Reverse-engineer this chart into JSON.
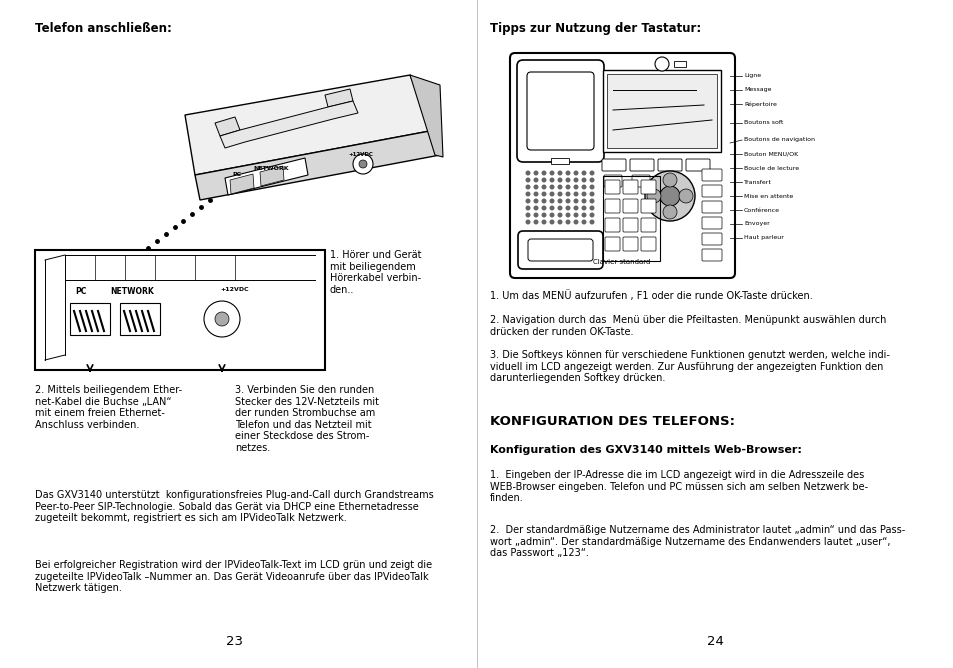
{
  "bg_color": "#ffffff",
  "text_color": "#000000",
  "left_page": {
    "title": "Telefon anschließen:",
    "caption1": "1. Hörer und Gerät\nmit beiliegendem\nHörerkabel verbin-\nden..",
    "caption2": "2. Mittels beiliegendem Ether-\nnet-Kabel die Buchse „LAN“\nmit einem freien Ethernet-\nAnschluss verbinden.",
    "caption3": "3. Verbinden Sie den runden\nStecker des 12V-Netzteils mit\nder runden Strombuchse am\nTelefon und das Netzteil mit\neiner Steckdose des Strom-\nnetzes.",
    "para1": "Das GXV3140 unterstützt  konfigurationsfreies Plug-and-Call durch Grandstreams\nPeer-to-Peer SIP-Technologie. Sobald das Gerät via DHCP eine Ethernetadresse\nzugeteilt bekommt, registriert es sich am IPVideoTalk Netzwerk.",
    "para2": "Bei erfolgreicher Registration wird der IPVideoTalk-Text im LCD grün und zeigt die\nzugeteilte IPVideoTalk –Nummer an. Das Gerät Videoanrufe über das IPVideoTalk\nNetzwerk tätigen.",
    "page_num": "23"
  },
  "right_page": {
    "title": "Tipps zur Nutzung der Tastatur:",
    "tip1": "1. Um das MENÜ aufzurufen , F1 oder die runde OK-Taste drücken.",
    "tip2": "2. Navigation durch das  Menü über die Pfeiltasten. Menüpunkt auswählen durch\ndrücken der runden OK-Taste.",
    "tip3": "3. Die Softkeys können für verschiedene Funktionen genutzt werden, welche indi-\nviduell im LCD angezeigt werden. Zur Ausführung der angezeigten Funktion den\ndarunterliegenden Softkey drücken.",
    "section_title": "KONFIGURATION DES TELEFONS:",
    "sub_title": "Konfiguration des GXV3140 mittels Web-Browser:",
    "config1": "1.  Eingeben der IP-Adresse die im LCD angezeigt wird in die Adresszeile des\nWEB-Browser eingeben. Telefon und PC müssen sich am selben Netzwerk be-\nfinden.",
    "config2": "2.  Der standardmäßige Nutzername des Administrator lautet „admin“ und das Pass-\nwort „admin“. Der standardmäßige Nutzername des Endanwenders lautet „user“,\ndas Passwort „123“.",
    "page_num": "24",
    "phone_labels": [
      "Ligne",
      "Message",
      "Répertoire",
      "Boutons soft",
      "Boutons de navigation",
      "Bouton MENU/OK",
      "Boucle de lecture",
      "Transfert",
      "Mise en attente",
      "Conférence",
      "Envoyer",
      "Haut parleur"
    ],
    "phone_label_bottom": "Clavier standard"
  }
}
